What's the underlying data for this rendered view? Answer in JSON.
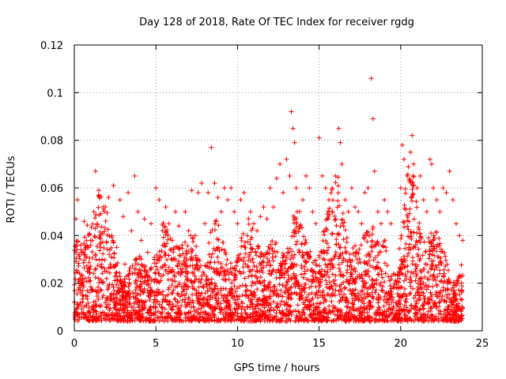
{
  "chart_data": {
    "type": "scatter",
    "title": "Day 128 of 2018, Rate Of TEC Index for receiver rgdg",
    "xlabel": "GPS time / hours",
    "ylabel": "ROTI / TECUs",
    "xlim": [
      0,
      25
    ],
    "ylim": [
      0,
      0.12
    ],
    "xticks": [
      "0",
      "5",
      "10",
      "15",
      "20",
      "25"
    ],
    "yticks": [
      "0",
      "0.02",
      "0.04",
      "0.06",
      "0.08",
      "0.1",
      "0.12"
    ],
    "grid": true,
    "legend": "none",
    "marker": "plus",
    "color": "#ff0000",
    "series": [
      {
        "x": [
          0.0,
          0.1,
          0.1,
          0.2,
          0.3,
          0.4,
          0.5,
          0.6,
          0.8,
          1.0,
          1.2,
          1.3,
          1.4,
          1.5,
          1.7,
          1.9,
          2.1,
          2.3,
          2.4,
          2.6,
          2.8,
          3.0,
          3.1,
          3.3,
          3.5,
          3.7,
          3.9,
          4.1,
          4.3,
          4.5,
          4.7,
          4.9,
          5.0,
          5.2,
          5.4,
          5.6,
          5.8,
          6.0,
          6.2,
          6.4,
          6.6,
          6.8,
          7.0,
          7.2,
          7.4,
          7.6,
          7.8,
          8.0,
          8.2,
          8.4,
          8.6,
          8.8,
          9.0,
          9.2,
          9.4,
          9.6,
          9.8,
          10.0,
          10.2,
          10.4,
          10.6,
          10.8,
          11.0,
          11.2,
          11.4,
          11.6,
          11.8,
          12.0,
          12.2,
          12.4,
          12.6,
          12.8,
          13.0,
          13.2,
          13.3,
          13.4,
          13.5,
          13.6,
          13.8,
          14.0,
          14.2,
          14.4,
          14.6,
          14.8,
          15.0,
          15.2,
          15.4,
          15.6,
          15.8,
          16.0,
          16.2,
          16.3,
          16.4,
          16.6,
          16.8,
          17.0,
          17.2,
          17.4,
          17.6,
          17.8,
          18.0,
          18.2,
          18.3,
          18.4,
          18.6,
          18.8,
          19.0,
          19.2,
          19.4,
          20.0,
          20.1,
          20.2,
          20.4,
          20.6,
          20.7,
          20.8,
          21.0,
          21.2,
          21.4,
          21.6,
          21.8,
          21.9,
          22.0,
          22.2,
          22.4,
          22.6,
          22.8,
          23.0,
          23.2,
          23.4,
          23.6,
          23.8
        ],
        "y": [
          0.012,
          0.047,
          0.008,
          0.055,
          0.02,
          0.034,
          0.015,
          0.046,
          0.025,
          0.038,
          0.05,
          0.067,
          0.045,
          0.059,
          0.03,
          0.052,
          0.056,
          0.04,
          0.061,
          0.035,
          0.055,
          0.048,
          0.028,
          0.058,
          0.042,
          0.065,
          0.05,
          0.038,
          0.047,
          0.033,
          0.045,
          0.03,
          0.06,
          0.055,
          0.042,
          0.052,
          0.045,
          0.038,
          0.05,
          0.044,
          0.036,
          0.05,
          0.042,
          0.059,
          0.04,
          0.058,
          0.062,
          0.045,
          0.058,
          0.077,
          0.062,
          0.056,
          0.05,
          0.06,
          0.055,
          0.06,
          0.05,
          0.045,
          0.055,
          0.058,
          0.04,
          0.05,
          0.045,
          0.042,
          0.048,
          0.052,
          0.047,
          0.06,
          0.052,
          0.064,
          0.07,
          0.058,
          0.072,
          0.065,
          0.092,
          0.085,
          0.079,
          0.06,
          0.05,
          0.055,
          0.065,
          0.06,
          0.05,
          0.045,
          0.081,
          0.065,
          0.06,
          0.055,
          0.05,
          0.065,
          0.085,
          0.079,
          0.07,
          0.055,
          0.05,
          0.06,
          0.052,
          0.05,
          0.045,
          0.058,
          0.06,
          0.106,
          0.089,
          0.067,
          0.05,
          0.045,
          0.055,
          0.05,
          0.045,
          0.06,
          0.078,
          0.072,
          0.065,
          0.075,
          0.082,
          0.07,
          0.06,
          0.065,
          0.055,
          0.05,
          0.072,
          0.07,
          0.06,
          0.055,
          0.05,
          0.06,
          0.058,
          0.067,
          0.055,
          0.045,
          0.04,
          0.038
        ]
      }
    ]
  }
}
